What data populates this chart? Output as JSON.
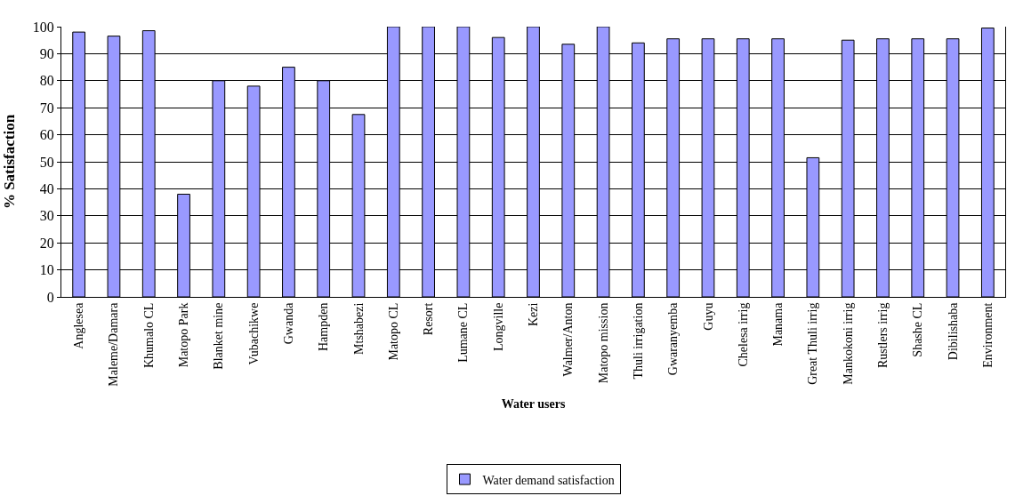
{
  "chart_data": {
    "type": "bar",
    "xlabel": "Water users",
    "ylabel": "% Satisfaction",
    "categories": [
      "Anglesea",
      "Maleme/Damara",
      "Khumalo CL",
      "Matopo Park",
      "Blanket mine",
      "Vubachikwe",
      "Gwanda",
      "Hampden",
      "Mtshabezi",
      "Matopo CL",
      "Resort",
      "Lumane CL",
      "Longville",
      "Kezi",
      "Walmer/Anton",
      "Matopo mission",
      "Thuli irrigation",
      "Gwaranyemba",
      "Guyu",
      "Chelesa irrig",
      "Manama",
      "Great Thuli irrig",
      "Mankokoni irrig",
      "Rustlers irrig",
      "Shashe CL",
      "Dibilishaba",
      "Environment"
    ],
    "series": [
      {
        "name": "Water demand satisfaction",
        "color": "#9999ff",
        "values": [
          98,
          96.5,
          98.5,
          38,
          80,
          78,
          85,
          80,
          67.5,
          100,
          100,
          100,
          96,
          100,
          93.5,
          100,
          94,
          95.5,
          95.5,
          95.5,
          95.5,
          51.5,
          95,
          95.5,
          95.5,
          95.5,
          99.5
        ]
      }
    ],
    "ylim": [
      0,
      100
    ],
    "yticks": [
      0,
      10,
      20,
      30,
      40,
      50,
      60,
      70,
      80,
      90,
      100
    ],
    "grid": "y",
    "legend": "bottom"
  }
}
